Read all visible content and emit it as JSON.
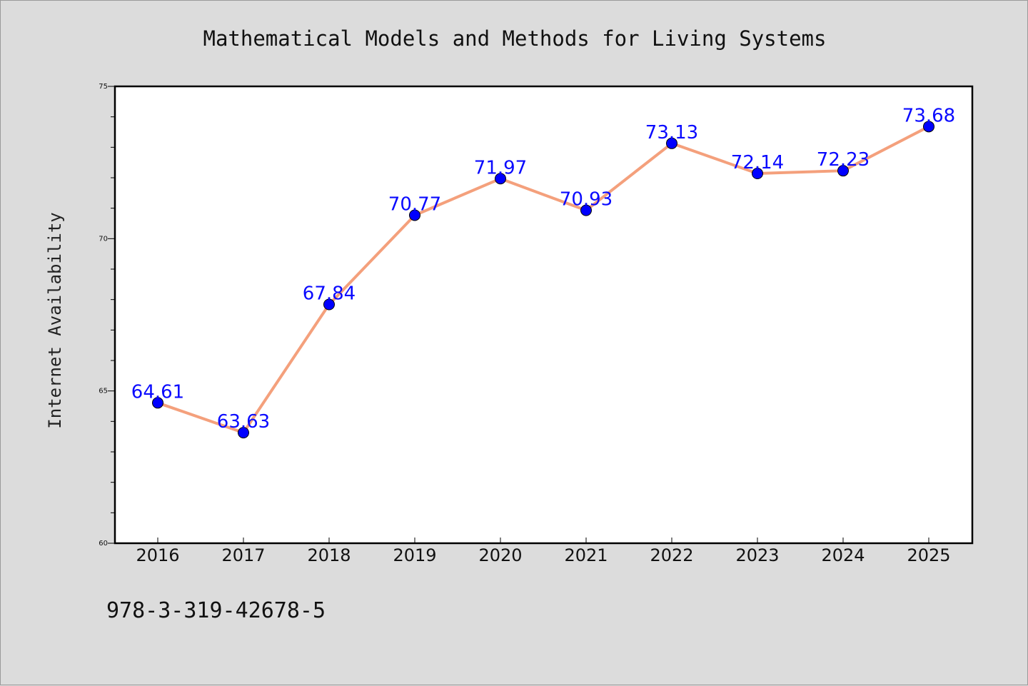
{
  "chart_data": {
    "type": "line",
    "title": "Mathematical Models and Methods for Living Systems",
    "xlabel": "",
    "ylabel": "Internet Availability",
    "categories": [
      "2016",
      "2017",
      "2018",
      "2019",
      "2020",
      "2021",
      "2022",
      "2023",
      "2024",
      "2025"
    ],
    "values": [
      64.61,
      63.63,
      67.84,
      70.77,
      71.97,
      70.93,
      73.13,
      72.14,
      72.23,
      73.68
    ],
    "value_labels": [
      "64.61",
      "63.63",
      "67.84",
      "70.77",
      "71.97",
      "70.93",
      "73.13",
      "72.14",
      "72.23",
      "73.68"
    ],
    "ylim": [
      60,
      75
    ],
    "yticks": [
      "60",
      "65",
      "70",
      "75"
    ],
    "grid": false,
    "line_color": "#f4a07c",
    "marker_color": "#0000ff",
    "label_color": "#0a0aff"
  },
  "footer": {
    "isbn": "978-3-319-42678-5"
  }
}
